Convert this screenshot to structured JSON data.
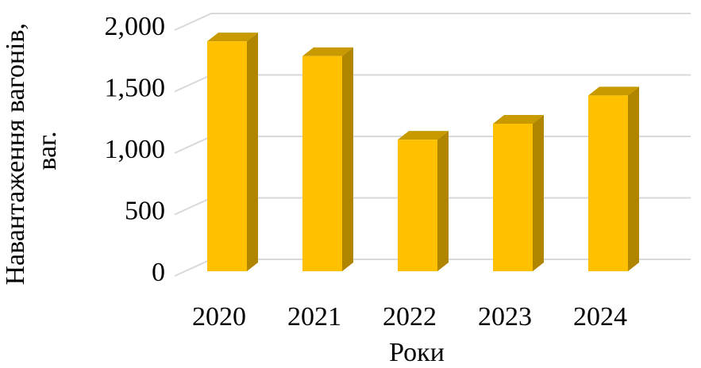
{
  "chart_data": {
    "type": "bar",
    "style": "3d-column",
    "categories": [
      "2020",
      "2021",
      "2022",
      "2023",
      "2024"
    ],
    "values": [
      1870,
      1750,
      1070,
      1200,
      1430
    ],
    "xlabel": "Роки",
    "ylabel_lines": [
      "Навантаження вагонів,",
      "ваг."
    ],
    "ylim": [
      0,
      2000
    ],
    "yticks": [
      "0",
      "500",
      "1,000",
      "1,500",
      "2,000"
    ],
    "ytick_values": [
      0,
      500,
      1000,
      1500,
      2000
    ],
    "grid": true,
    "legend": "none",
    "colors": {
      "bar_front": "#FFC000",
      "bar_side": "#B08600",
      "bar_top": "#C89A00",
      "grid": "#D9D9D9"
    }
  }
}
